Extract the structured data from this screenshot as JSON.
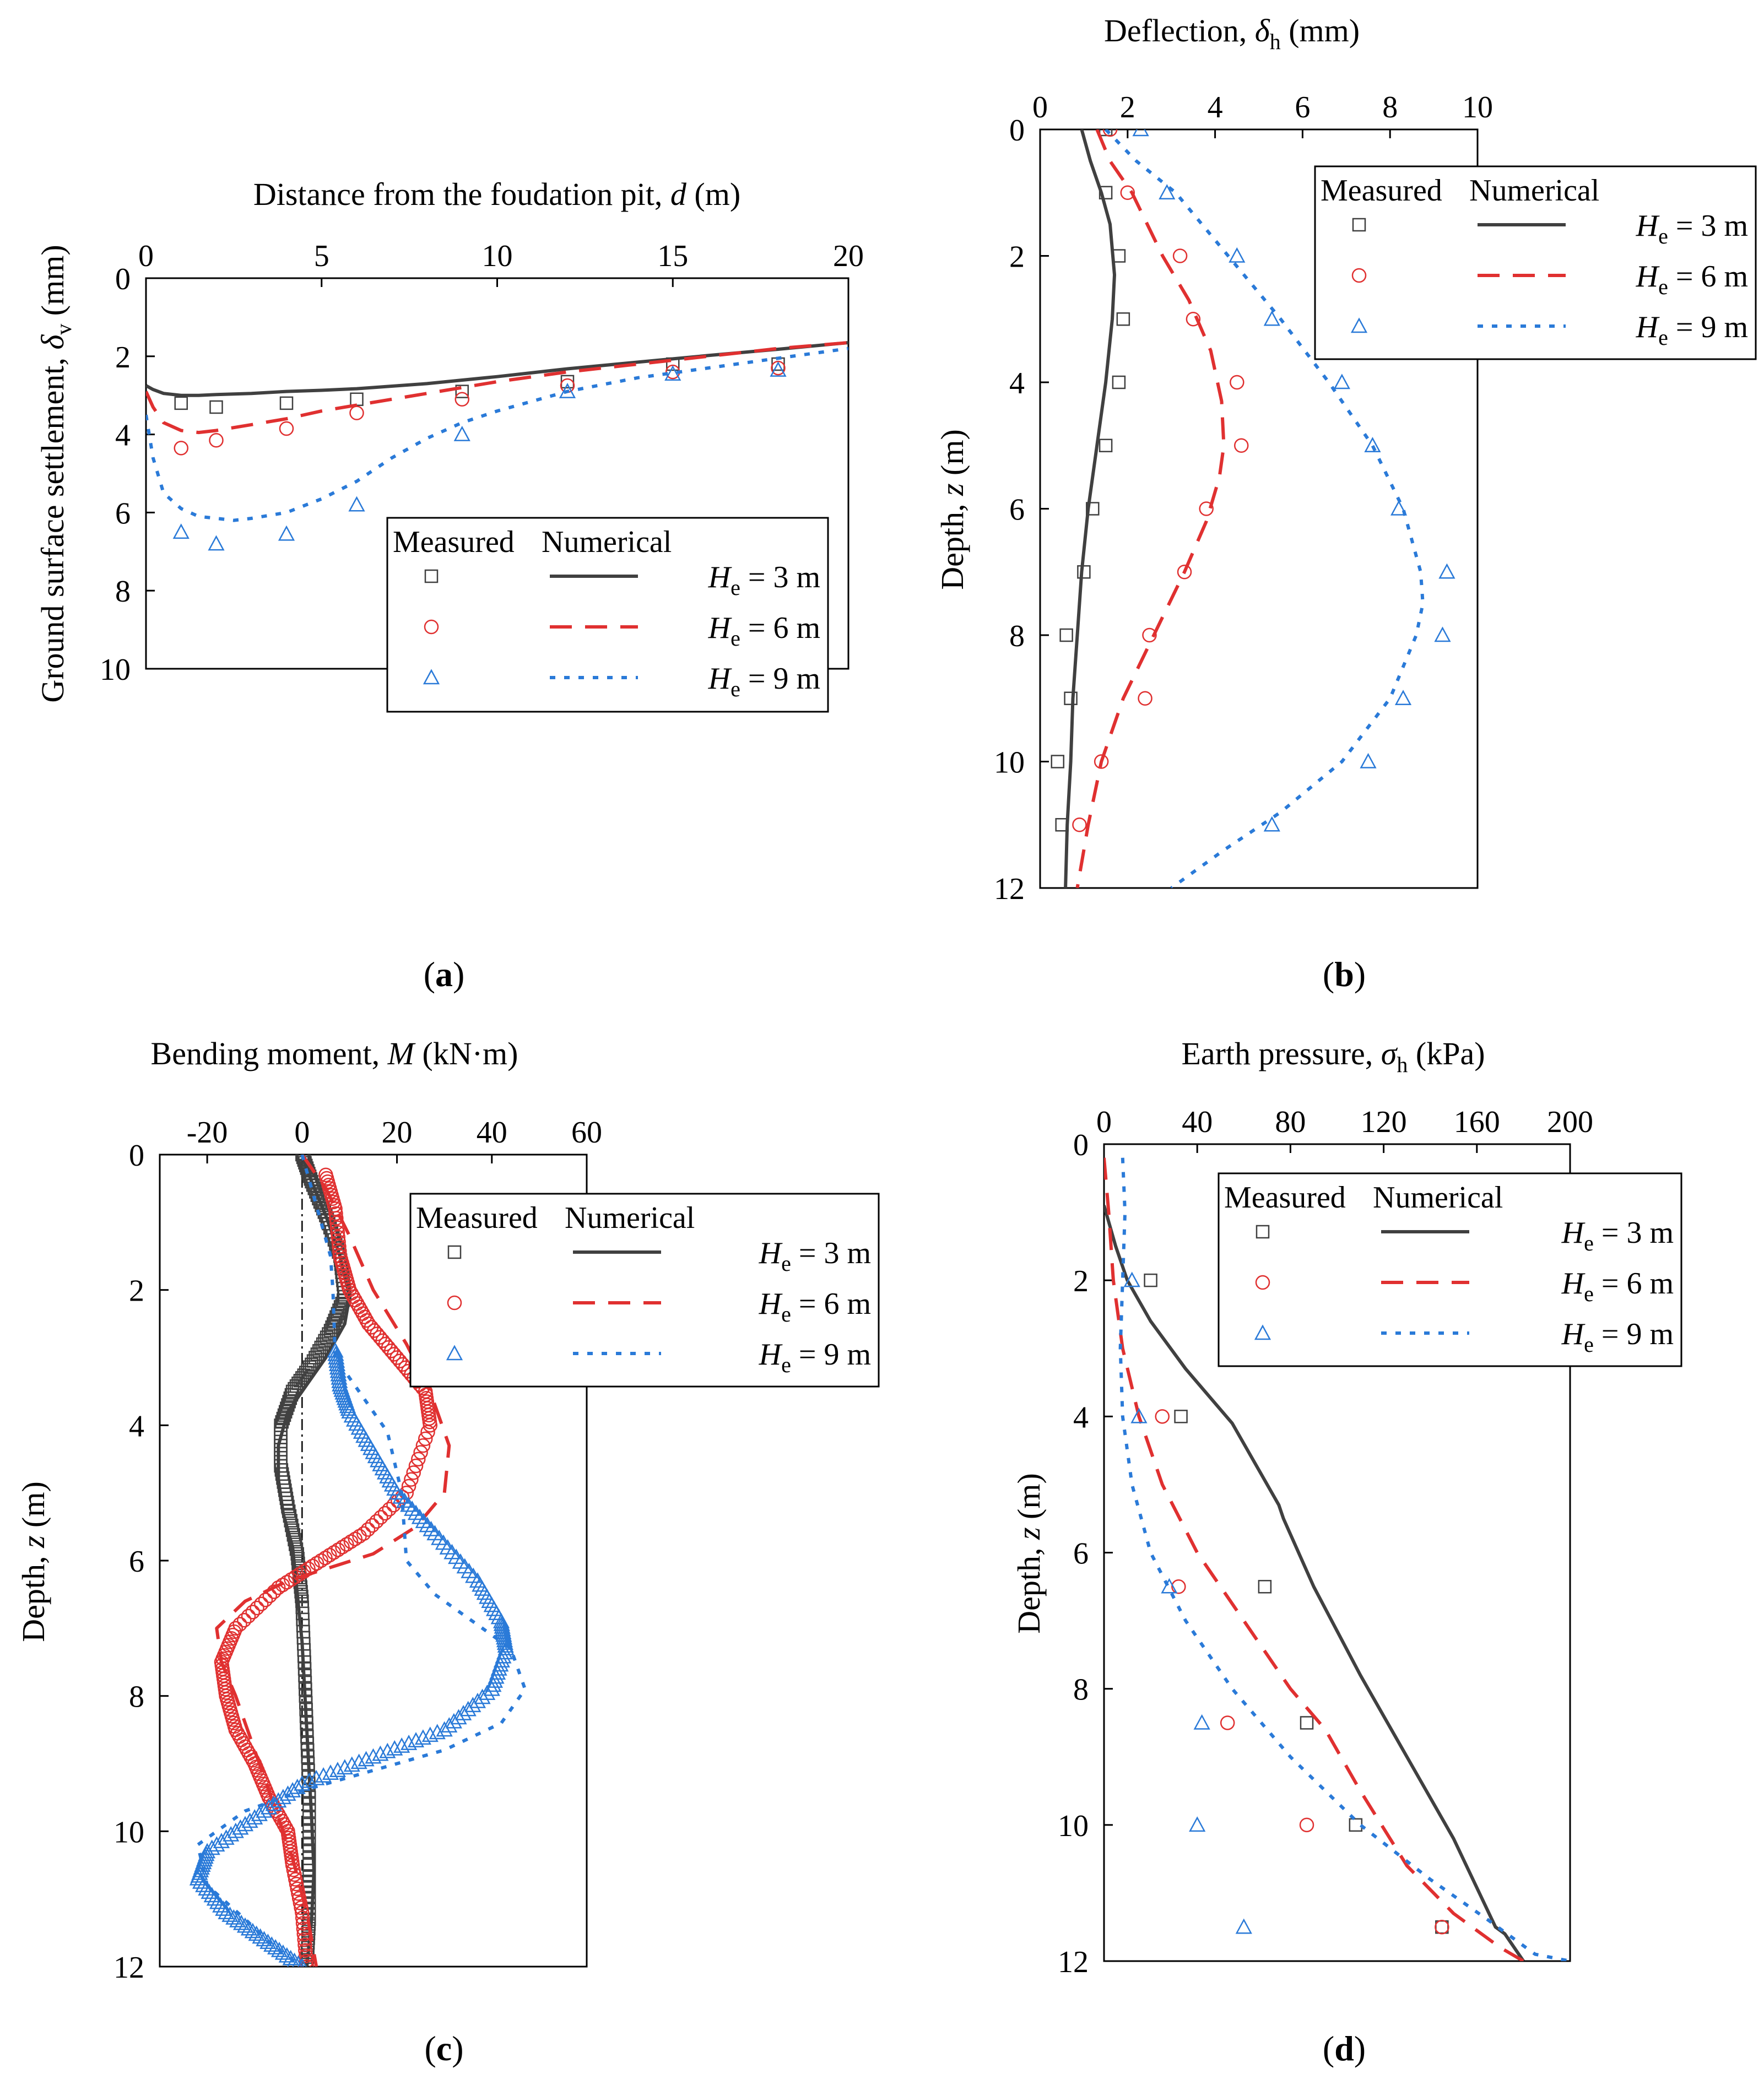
{
  "chart_data": [
    {
      "panel": "a",
      "panel_label": "(a)",
      "type": "line",
      "title": "",
      "xlabel": "Distance from the foudation pit, d (m)",
      "ylabel": "Ground surface settlement, δv (mm)",
      "xlim": [
        0,
        20
      ],
      "ylim": [
        0,
        10
      ],
      "xticks": [
        "0",
        "5",
        "10",
        "15",
        "20"
      ],
      "yticks": [
        "0",
        "2",
        "4",
        "6",
        "8",
        "10"
      ],
      "legend_position": "lower-right",
      "legend": {
        "measured_header": "Measured",
        "numerical_header": "Numerical",
        "entries": [
          "He = 3 m",
          "He = 6 m",
          "He = 9 m"
        ]
      },
      "series": [
        {
          "name": "He = 3 m",
          "color": "#404040",
          "numerical": {
            "x": [
              0,
              0.2,
              0.5,
              1,
              1.5,
              2,
              3,
              4,
              5,
              6,
              8,
              10,
              12,
              14,
              16,
              18,
              20
            ],
            "y": [
              2.75,
              2.85,
              2.95,
              3.0,
              3.0,
              2.98,
              2.95,
              2.9,
              2.87,
              2.83,
              2.7,
              2.52,
              2.32,
              2.15,
              1.98,
              1.82,
              1.65
            ]
          },
          "measured": {
            "x": [
              1,
              2,
              4,
              6,
              9,
              12,
              15,
              18
            ],
            "y": [
              3.2,
              3.3,
              3.2,
              3.1,
              2.9,
              2.65,
              2.2,
              2.2
            ]
          }
        },
        {
          "name": "He = 6 m",
          "color": "#e03030",
          "numerical": {
            "x": [
              0,
              0.2,
              0.5,
              1,
              1.5,
              2,
              3,
              4,
              5,
              6,
              8,
              10,
              12,
              14,
              16,
              18,
              20
            ],
            "y": [
              2.9,
              3.3,
              3.7,
              3.9,
              3.95,
              3.9,
              3.75,
              3.6,
              3.4,
              3.25,
              2.95,
              2.65,
              2.4,
              2.2,
              2.0,
              1.8,
              1.65
            ]
          },
          "measured": {
            "x": [
              1,
              2,
              4,
              6,
              9,
              12,
              15,
              18
            ],
            "y": [
              4.35,
              4.15,
              3.85,
              3.45,
              3.1,
              2.75,
              2.4,
              2.3
            ]
          }
        },
        {
          "name": "He = 9 m",
          "color": "#2a7ad8",
          "numerical": {
            "x": [
              0,
              0.2,
              0.5,
              1,
              1.5,
              2,
              2.5,
              3,
              4,
              5,
              6,
              7,
              8,
              9,
              10,
              12,
              14,
              16,
              18,
              20
            ],
            "y": [
              3.5,
              4.6,
              5.5,
              5.9,
              6.1,
              6.15,
              6.2,
              6.15,
              6.0,
              5.65,
              5.2,
              4.6,
              4.1,
              3.7,
              3.4,
              2.9,
              2.55,
              2.3,
              2.05,
              1.8
            ]
          },
          "measured": {
            "x": [
              1,
              2,
              4,
              6,
              9,
              12,
              15,
              18
            ],
            "y": [
              6.5,
              6.8,
              6.55,
              5.8,
              4.0,
              2.9,
              2.45,
              2.35
            ]
          }
        }
      ]
    },
    {
      "panel": "b",
      "panel_label": "(b)",
      "type": "line",
      "title": "",
      "xlabel": "Deflection, δh (mm)",
      "ylabel": "Depth, z (m)",
      "xlim": [
        0,
        10
      ],
      "ylim": [
        0,
        12
      ],
      "xticks": [
        "0",
        "2",
        "4",
        "6",
        "8",
        "10"
      ],
      "yticks": [
        "0",
        "2",
        "4",
        "6",
        "8",
        "10",
        "12"
      ],
      "legend_position": "upper-right",
      "legend": {
        "measured_header": "Measured",
        "numerical_header": "Numerical",
        "entries": [
          "He = 3 m",
          "He = 6 m",
          "He = 9 m"
        ]
      },
      "series": [
        {
          "name": "He = 3 m",
          "color": "#404040",
          "numerical": {
            "x": [
              0.95,
              1.15,
              1.4,
              1.6,
              1.7,
              1.65,
              1.5,
              1.3,
              1.1,
              0.95,
              0.85,
              0.75,
              0.7,
              0.62,
              0.58
            ],
            "y": [
              0,
              0.5,
              1.0,
              1.5,
              2.3,
              3.0,
              4.0,
              5.0,
              6.0,
              7.0,
              8.0,
              9.0,
              10.0,
              11.0,
              12.0
            ]
          },
          "measured": {
            "x": [
              1.5,
              1.5,
              1.8,
              1.9,
              1.8,
              1.5,
              1.2,
              1.0,
              0.6,
              0.7,
              0.4,
              0.5
            ],
            "y": [
              0,
              1,
              2,
              3,
              4,
              5,
              6,
              7,
              8,
              9,
              10,
              11
            ]
          }
        },
        {
          "name": "He = 6 m",
          "color": "#e03030",
          "numerical": {
            "x": [
              1.3,
              1.6,
              2.1,
              2.8,
              3.4,
              3.9,
              4.15,
              4.2,
              4.1,
              3.8,
              3.3,
              2.6,
              1.9,
              1.4,
              1.1,
              0.85
            ],
            "y": [
              0,
              0.5,
              1.0,
              2.0,
              2.7,
              3.5,
              4.3,
              5.0,
              5.5,
              6.2,
              7.0,
              8.0,
              9.0,
              10.0,
              11.0,
              12.0
            ]
          },
          "measured": {
            "x": [
              1.6,
              2.0,
              3.2,
              3.5,
              4.5,
              4.6,
              3.8,
              3.3,
              2.5,
              2.4,
              1.4,
              0.9
            ],
            "y": [
              0,
              1,
              2,
              3,
              4,
              5,
              6,
              7,
              8,
              9,
              10,
              11
            ]
          }
        },
        {
          "name": "He = 9 m",
          "color": "#2a7ad8",
          "numerical": {
            "x": [
              1.5,
              2.2,
              3.1,
              4.3,
              5.5,
              6.6,
              7.6,
              8.3,
              8.7,
              8.75,
              8.6,
              8.0,
              6.9,
              5.5,
              4.2,
              3.0
            ],
            "y": [
              0,
              0.5,
              1.0,
              2.0,
              3.0,
              4.0,
              5.0,
              6.0,
              7.0,
              7.5,
              8.0,
              9.0,
              10.0,
              10.8,
              11.4,
              12.0
            ]
          },
          "measured": {
            "x": [
              2.3,
              2.9,
              4.5,
              5.3,
              6.9,
              7.6,
              8.2,
              9.3,
              9.2,
              8.3,
              7.5,
              5.3
            ],
            "y": [
              0,
              1,
              2,
              3,
              4,
              5,
              6,
              7,
              8,
              9,
              10,
              11
            ]
          }
        }
      ]
    },
    {
      "panel": "c",
      "panel_label": "(c)",
      "type": "line",
      "title": "",
      "xlabel": "Bending moment, M (kN·m)",
      "ylabel": "Depth, z (m)",
      "xlim": [
        -30,
        60
      ],
      "ylim": [
        0,
        12
      ],
      "xticks": [
        "-20",
        "0",
        "20",
        "40",
        "60"
      ],
      "yticks": [
        "0",
        "2",
        "4",
        "6",
        "8",
        "10",
        "12"
      ],
      "reference_line_x": 0,
      "legend_position": "upper-right",
      "legend": {
        "measured_header": "Measured",
        "numerical_header": "Numerical",
        "entries": [
          "He = 3 m",
          "He = 6 m",
          "He = 9 m"
        ]
      },
      "series": [
        {
          "name": "He = 3 m",
          "color": "#404040",
          "numerical": {
            "x": [
              0,
              2,
              5,
              8,
              10,
              9,
              5,
              1,
              -3,
              -5,
              -5,
              -4,
              -2,
              -1,
              0,
              1,
              2,
              2.5,
              2,
              1
            ],
            "y": [
              0,
              0.4,
              0.9,
              1.5,
              2.1,
              2.5,
              3.0,
              3.4,
              3.8,
              4.3,
              4.8,
              5.3,
              5.8,
              6.5,
              7.2,
              8.5,
              9.8,
              10.6,
              11.3,
              12.0
            ]
          },
          "measured": {
            "x": [
              0,
              2,
              5,
              8,
              9,
              6,
              2,
              -2,
              -4.5,
              -4.5,
              -3,
              -1,
              0,
              0.5,
              1,
              1.5,
              1.5,
              1.5,
              1
            ],
            "y": [
              0,
              0.4,
              0.9,
              1.5,
              2.1,
              2.6,
              3.1,
              3.5,
              4.0,
              4.6,
              5.2,
              5.9,
              6.6,
              7.5,
              8.5,
              9.5,
              10.5,
              11.3,
              12.0
            ]
          }
        },
        {
          "name": "He = 6 m",
          "color": "#e03030",
          "numerical": {
            "x": [
              0,
              5,
              10,
              15,
              22,
              27,
              31,
              30,
              24,
              15,
              6,
              -3,
              -12,
              -18,
              -17,
              -14,
              -11,
              -8,
              -5,
              -2,
              1,
              3
            ],
            "y": [
              0,
              0.5,
              1.2,
              2.0,
              2.8,
              3.5,
              4.3,
              5.0,
              5.5,
              5.9,
              6.1,
              6.3,
              6.6,
              7.0,
              7.5,
              8.0,
              8.6,
              9.2,
              9.8,
              10.4,
              11.2,
              12.0
            ]
          },
          "measured": {
            "x": [
              5,
              7,
              8,
              10,
              14,
              20,
              26,
              27,
              22,
              13,
              4,
              -5,
              -14,
              -17,
              -16,
              -14,
              -10,
              -7,
              -3,
              -2,
              0,
              1
            ],
            "y": [
              0.3,
              0.8,
              1.5,
              2.0,
              2.5,
              3.0,
              3.5,
              4.0,
              5.0,
              5.6,
              6.0,
              6.4,
              7.0,
              7.5,
              8.0,
              8.5,
              9.0,
              9.5,
              10.0,
              10.5,
              11.2,
              12.0
            ]
          }
        },
        {
          "name": "He = 9 m",
          "color": "#2a7ad8",
          "numerical": {
            "x": [
              0,
              2,
              4,
              6,
              6.5,
              7,
              12,
              18,
              21,
              22,
              28,
              38,
              44,
              47,
              42,
              30,
              15,
              0,
              -12,
              -22,
              -20,
              -12,
              -6,
              0
            ],
            "y": [
              0,
              0.5,
              1.0,
              1.5,
              2.0,
              3.0,
              3.5,
              4.1,
              5.0,
              6.0,
              6.5,
              7.0,
              7.3,
              7.9,
              8.4,
              8.8,
              9.1,
              9.4,
              9.7,
              10.2,
              10.8,
              11.3,
              11.7,
              12.0
            ]
          },
          "measured": {
            "x": [
              7,
              8,
              10,
              15,
              20,
              28,
              37,
              42,
              43,
              40,
              30,
              15,
              0,
              -10,
              -20,
              -22,
              -16,
              -8,
              0
            ],
            "y": [
              2.9,
              3.4,
              3.8,
              4.4,
              5.0,
              5.6,
              6.3,
              6.9,
              7.3,
              7.9,
              8.5,
              8.9,
              9.3,
              9.8,
              10.3,
              10.7,
              11.2,
              11.6,
              12.0
            ]
          }
        }
      ]
    },
    {
      "panel": "d",
      "panel_label": "(d)",
      "type": "line",
      "title": "",
      "xlabel": "Earth pressure, σh (kPa)",
      "ylabel": "Depth, z (m)",
      "xlim": [
        0,
        200
      ],
      "ylim": [
        0,
        12
      ],
      "xticks": [
        "0",
        "40",
        "80",
        "120",
        "160",
        "200"
      ],
      "yticks": [
        "0",
        "2",
        "4",
        "6",
        "8",
        "10",
        "12"
      ],
      "legend_position": "upper-right",
      "legend": {
        "measured_header": "Measured",
        "numerical_header": "Numerical",
        "entries": [
          "He = 3 m",
          "He = 6 m",
          "He = 9 m"
        ]
      },
      "series": [
        {
          "name": "He = 3 m",
          "color": "#404040",
          "numerical": {
            "x": [
              0,
              5,
              10,
              20,
              35,
              55,
              75,
              77,
              90,
              110,
              130,
              150,
              168,
              172,
              180
            ],
            "y": [
              0.9,
              1.5,
              2.0,
              2.6,
              3.3,
              4.1,
              5.3,
              5.5,
              6.5,
              7.8,
              9.0,
              10.2,
              11.5,
              11.6,
              12.0
            ]
          },
          "measured": {
            "x": [
              20,
              33,
              69,
              87,
              108,
              145
            ],
            "y": [
              2.0,
              4.0,
              6.5,
              8.5,
              10.0,
              11.5
            ]
          }
        },
        {
          "name": "He = 6 m",
          "color": "#e03030",
          "numerical": {
            "x": [
              0,
              2,
              4,
              8,
              15,
              25,
              40,
              60,
              80,
              95,
              110,
              130,
              150,
              170,
              180
            ],
            "y": [
              0.2,
              1.0,
              2.0,
              3.0,
              4.0,
              5.0,
              6.0,
              7.0,
              8.0,
              8.6,
              9.5,
              10.6,
              11.3,
              11.8,
              12.0
            ]
          },
          "measured": {
            "x": [
              25,
              32,
              53,
              87,
              145
            ],
            "y": [
              4.0,
              6.5,
              8.5,
              10.0,
              11.5
            ]
          }
        },
        {
          "name": "He = 9 m",
          "color": "#2a7ad8",
          "numerical": {
            "x": [
              8,
              9,
              8,
              7,
              8,
              12,
              20,
              35,
              55,
              80,
              110,
              140,
              165,
              185,
              200
            ],
            "y": [
              0.2,
              1.0,
              2.0,
              3.0,
              4.0,
              5.0,
              6.0,
              7.0,
              8.0,
              9.0,
              10.0,
              10.8,
              11.4,
              11.9,
              12.0
            ]
          },
          "measured": {
            "x": [
              12,
              15,
              28,
              42,
              40,
              60
            ],
            "y": [
              2.0,
              4.0,
              6.5,
              8.5,
              10.0,
              11.5
            ]
          }
        }
      ]
    }
  ]
}
